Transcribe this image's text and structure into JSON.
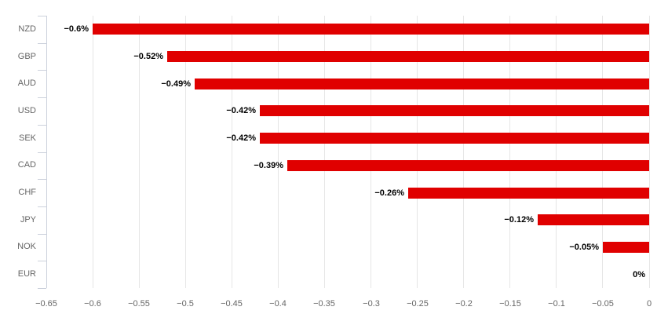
{
  "chart_data": {
    "type": "bar",
    "orientation": "horizontal",
    "title": "",
    "xlabel": "",
    "ylabel": "",
    "categories": [
      "NZD",
      "GBP",
      "AUD",
      "USD",
      "SEK",
      "CAD",
      "CHF",
      "JPY",
      "NOK",
      "EUR"
    ],
    "values": [
      -0.6,
      -0.52,
      -0.49,
      -0.42,
      -0.42,
      -0.39,
      -0.26,
      -0.12,
      -0.05,
      0
    ],
    "data_labels": [
      "−0.6%",
      "−0.52%",
      "−0.49%",
      "−0.42%",
      "−0.42%",
      "−0.39%",
      "−0.26%",
      "−0.12%",
      "−0.05%",
      "0%"
    ],
    "x_tick_values": [
      -0.65,
      -0.6,
      -0.55,
      -0.5,
      -0.45,
      -0.4,
      -0.35,
      -0.3,
      -0.25,
      -0.2,
      -0.15,
      -0.1,
      -0.05,
      0
    ],
    "x_tick_labels": [
      "−0.65",
      "−0.6",
      "−0.55",
      "−0.5",
      "−0.45",
      "−0.4",
      "−0.35",
      "−0.3",
      "−0.25",
      "−0.2",
      "−0.15",
      "−0.1",
      "−0.05",
      "0"
    ],
    "xlim": [
      -0.65,
      0
    ],
    "grid": true,
    "legend": "none",
    "colors": {
      "bar": "#e00000",
      "gridline": "#e6e6e6",
      "axis": "#ccd1dc",
      "category_label": "#666666",
      "tick_label": "#666666",
      "data_label": "#000000",
      "background": "#ffffff"
    }
  }
}
